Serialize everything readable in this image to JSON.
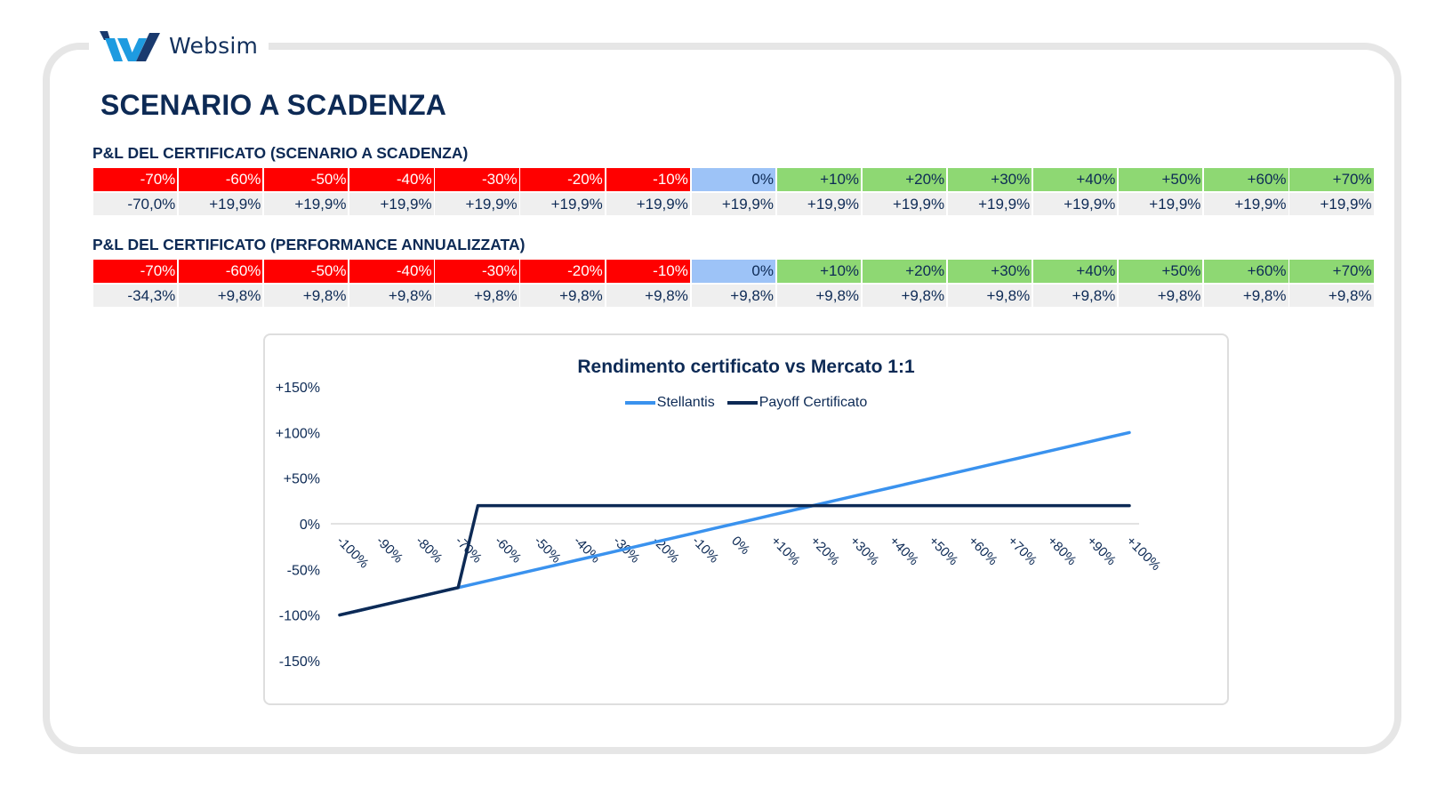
{
  "brand": {
    "name": "Websim",
    "colors": {
      "dark": "#1a3a6e",
      "light": "#1e9be0"
    }
  },
  "page": {
    "title": "SCENARIO A SCADENZA"
  },
  "tables": [
    {
      "title": "P&L DEL CERTIFICATO (SCENARIO A SCADENZA)",
      "headers": [
        "-70%",
        "-60%",
        "-50%",
        "-40%",
        "-30%",
        "-20%",
        "-10%",
        "0%",
        "+10%",
        "+20%",
        "+30%",
        "+40%",
        "+50%",
        "+60%",
        "+70%"
      ],
      "values": [
        "-70,0%",
        "+19,9%",
        "+19,9%",
        "+19,9%",
        "+19,9%",
        "+19,9%",
        "+19,9%",
        "+19,9%",
        "+19,9%",
        "+19,9%",
        "+19,9%",
        "+19,9%",
        "+19,9%",
        "+19,9%",
        "+19,9%"
      ]
    },
    {
      "title": "P&L DEL CERTIFICATO (PERFORMANCE ANNUALIZZATA)",
      "headers": [
        "-70%",
        "-60%",
        "-50%",
        "-40%",
        "-30%",
        "-20%",
        "-10%",
        "0%",
        "+10%",
        "+20%",
        "+30%",
        "+40%",
        "+50%",
        "+60%",
        "+70%"
      ],
      "values": [
        "-34,3%",
        "+9,8%",
        "+9,8%",
        "+9,8%",
        "+9,8%",
        "+9,8%",
        "+9,8%",
        "+9,8%",
        "+9,8%",
        "+9,8%",
        "+9,8%",
        "+9,8%",
        "+9,8%",
        "+9,8%",
        "+9,8%"
      ]
    }
  ],
  "colors": {
    "negative": "#ff0000",
    "zero": "#9dc3f7",
    "positive": "#8ed873",
    "value_bg": "#efefef",
    "stellantis": "#3a92ee",
    "payoff": "#0d2a55"
  },
  "chart_data": {
    "type": "line",
    "title": "Rendimento certificato vs Mercato 1:1",
    "xlabel": "",
    "ylabel": "",
    "ylim": [
      -150,
      150
    ],
    "y_ticks": [
      "+150%",
      "+100%",
      "+50%",
      "0%",
      "-50%",
      "-100%",
      "-150%"
    ],
    "x_tick_labels": [
      "-100%",
      "-90%",
      "-80%",
      "-70%",
      "-60%",
      "-50%",
      "-40%",
      "-30%",
      "-20%",
      "-10%",
      "0%",
      "+10%",
      "+20%",
      "+30%",
      "+40%",
      "+50%",
      "+60%",
      "+70%",
      "+80%",
      "+90%",
      "+100%"
    ],
    "legend": [
      "Stellantis",
      "Payoff Certificato"
    ],
    "legend_position": "top",
    "grid": false,
    "x": [
      -100,
      -95,
      -90,
      -85,
      -80,
      -75,
      -70,
      -65,
      -60,
      -55,
      -50,
      -45,
      -40,
      -35,
      -30,
      -25,
      -20,
      -15,
      -10,
      -5,
      0,
      5,
      10,
      15,
      20,
      25,
      30,
      35,
      40,
      45,
      50,
      55,
      60,
      65,
      70,
      75,
      80,
      85,
      90,
      95,
      100
    ],
    "series": [
      {
        "name": "Stellantis",
        "color": "#3a92ee",
        "values": [
          -100,
          -95,
          -90,
          -85,
          -80,
          -75,
          -70,
          -65,
          -60,
          -55,
          -50,
          -45,
          -40,
          -35,
          -30,
          -25,
          -20,
          -15,
          -10,
          -5,
          0,
          5,
          10,
          15,
          20,
          25,
          30,
          35,
          40,
          45,
          50,
          55,
          60,
          65,
          70,
          75,
          80,
          85,
          90,
          95,
          100
        ]
      },
      {
        "name": "Payoff Certificato",
        "color": "#0d2a55",
        "values": [
          -100,
          -95,
          -90,
          -85,
          -80,
          -75,
          -70,
          19.9,
          19.9,
          19.9,
          19.9,
          19.9,
          19.9,
          19.9,
          19.9,
          19.9,
          19.9,
          19.9,
          19.9,
          19.9,
          19.9,
          19.9,
          19.9,
          19.9,
          19.9,
          19.9,
          19.9,
          19.9,
          19.9,
          19.9,
          19.9,
          19.9,
          19.9,
          19.9,
          19.9,
          19.9,
          19.9,
          19.9,
          19.9,
          19.9,
          19.9
        ]
      }
    ]
  }
}
